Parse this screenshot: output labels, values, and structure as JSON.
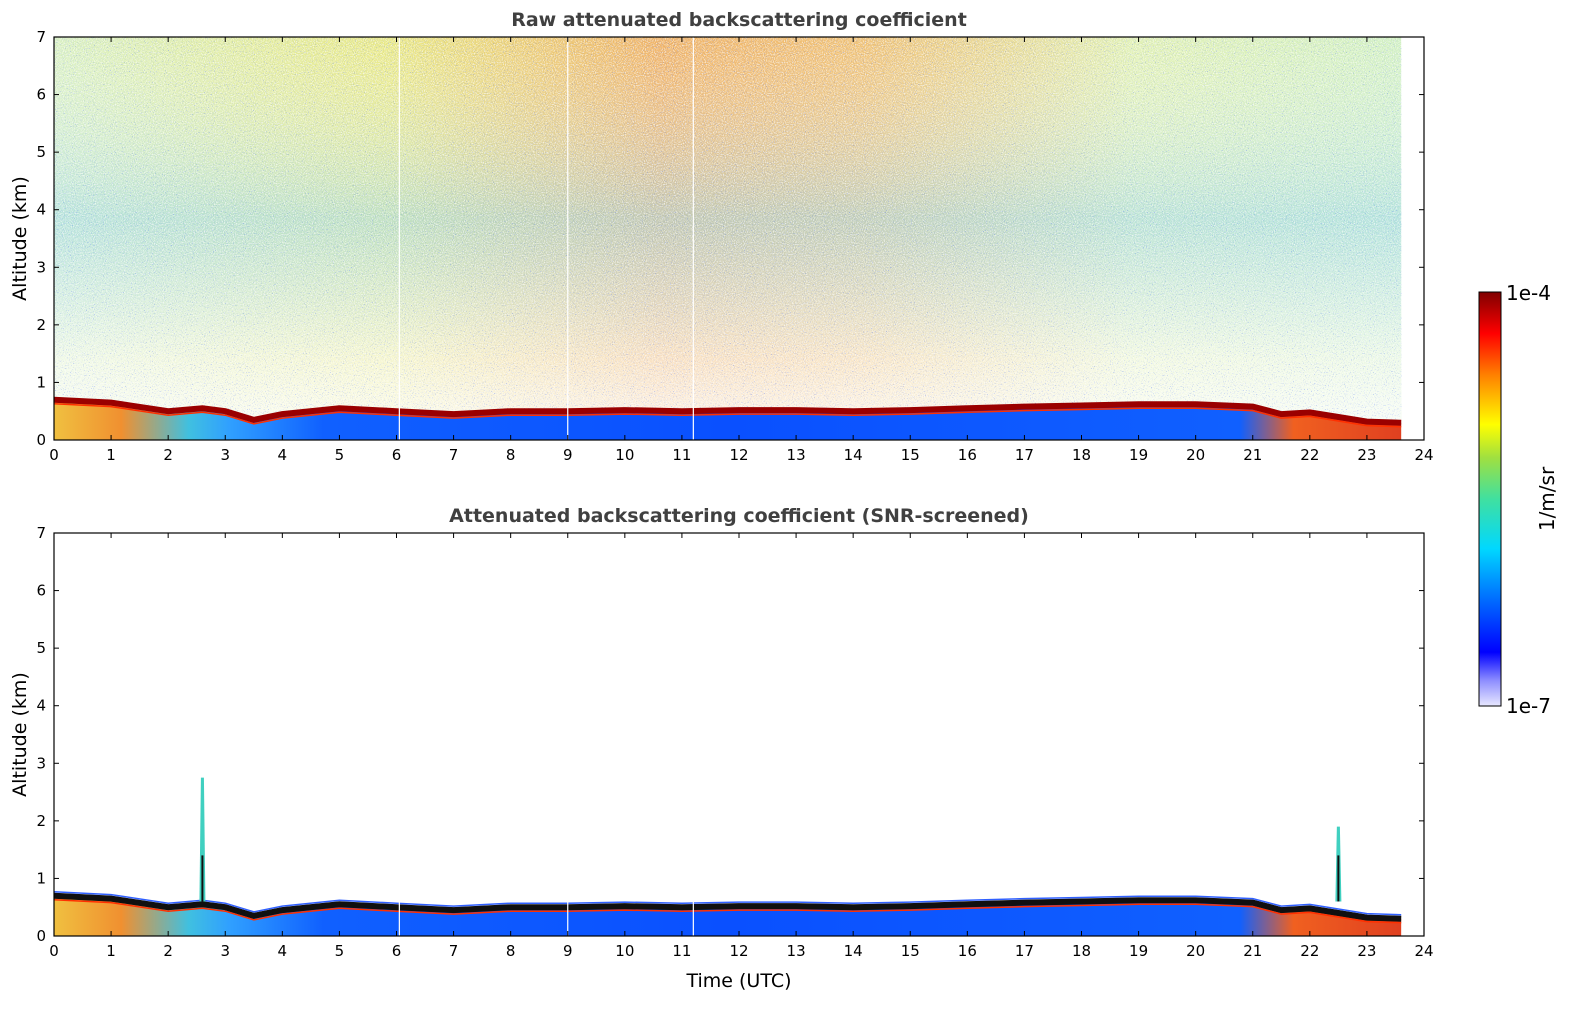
{
  "chart_data": [
    {
      "type": "heatmap",
      "title": "Raw attenuated backscattering coefficient",
      "xlabel": "",
      "ylabel": "Altitude (km)",
      "xlim": [
        0,
        24
      ],
      "ylim": [
        0,
        7
      ],
      "xticks": [
        "0",
        "1",
        "2",
        "3",
        "4",
        "5",
        "6",
        "7",
        "8",
        "9",
        "10",
        "11",
        "12",
        "13",
        "14",
        "15",
        "16",
        "17",
        "18",
        "19",
        "20",
        "21",
        "22",
        "23",
        "24"
      ],
      "yticks": [
        "0",
        "1",
        "2",
        "3",
        "4",
        "5",
        "6",
        "7"
      ],
      "data_extent_x": [
        0,
        23.6
      ],
      "boundary_layer_top_km": {
        "x": [
          0,
          1,
          2,
          2.6,
          3,
          3.5,
          4,
          5,
          6,
          7,
          8,
          9,
          10,
          11,
          12,
          13,
          14,
          15,
          16,
          17,
          18,
          19,
          20,
          21,
          21.5,
          22,
          22.5,
          23,
          23.6
        ],
        "y": [
          0.7,
          0.65,
          0.5,
          0.55,
          0.5,
          0.35,
          0.45,
          0.55,
          0.5,
          0.45,
          0.5,
          0.5,
          0.52,
          0.5,
          0.52,
          0.52,
          0.5,
          0.52,
          0.55,
          0.58,
          0.6,
          0.62,
          0.62,
          0.58,
          0.45,
          0.48,
          0.4,
          0.32,
          0.3
        ]
      },
      "noise_level": "high"
    },
    {
      "type": "heatmap",
      "title": "Attenuated backscattering coefficient (SNR-screened)",
      "xlabel": "Time (UTC)",
      "ylabel": "Altitude (km)",
      "xlim": [
        0,
        24
      ],
      "ylim": [
        0,
        7
      ],
      "xticks": [
        "0",
        "1",
        "2",
        "3",
        "4",
        "5",
        "6",
        "7",
        "8",
        "9",
        "10",
        "11",
        "12",
        "13",
        "14",
        "15",
        "16",
        "17",
        "18",
        "19",
        "20",
        "21",
        "22",
        "23",
        "24"
      ],
      "yticks": [
        "0",
        "1",
        "2",
        "3",
        "4",
        "5",
        "6",
        "7"
      ],
      "data_extent_x": [
        0,
        23.6
      ],
      "boundary_layer_top_km": {
        "x": [
          0,
          1,
          2,
          2.6,
          3,
          3.5,
          4,
          5,
          6,
          7,
          8,
          9,
          10,
          11,
          12,
          13,
          14,
          15,
          16,
          17,
          18,
          19,
          20,
          21,
          21.5,
          22,
          22.5,
          23,
          23.6
        ],
        "y": [
          0.7,
          0.65,
          0.5,
          0.55,
          0.5,
          0.35,
          0.45,
          0.55,
          0.5,
          0.45,
          0.5,
          0.5,
          0.52,
          0.5,
          0.52,
          0.52,
          0.5,
          0.52,
          0.55,
          0.58,
          0.6,
          0.62,
          0.62,
          0.58,
          0.45,
          0.48,
          0.4,
          0.32,
          0.3
        ]
      },
      "plumes": [
        {
          "x": 2.6,
          "top_km": 2.75
        },
        {
          "x": 22.5,
          "top_km": 1.9
        }
      ],
      "noise_level": "none"
    }
  ],
  "colorbar": {
    "label": "1/m/sr",
    "max_label": "1e-4",
    "min_label": "1e-7",
    "scale": "log",
    "colormap": "jet"
  }
}
